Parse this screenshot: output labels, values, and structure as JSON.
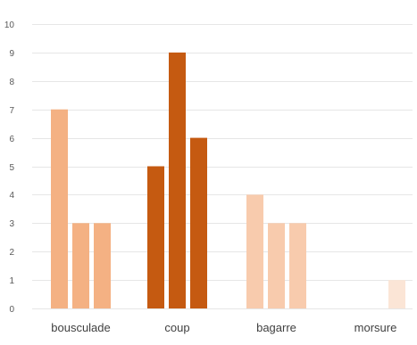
{
  "chart_data": {
    "type": "bar",
    "title": "",
    "xlabel": "",
    "ylabel": "",
    "ylim": [
      0,
      10
    ],
    "yticks": [
      0,
      1,
      2,
      3,
      4,
      5,
      6,
      7,
      8,
      9,
      10
    ],
    "grid": true,
    "legend": "none",
    "groups": [
      {
        "label": "bousculade",
        "color": "#f4b183",
        "values": [
          7,
          3,
          3
        ]
      },
      {
        "label": "coup",
        "color": "#c55a11",
        "values": [
          5,
          9,
          6
        ]
      },
      {
        "label": "bagarre",
        "color": "#f8cbad",
        "values": [
          4,
          3,
          3
        ]
      },
      {
        "label": "morsure",
        "color": "#fbe5d6",
        "values": [
          0,
          0,
          1
        ]
      }
    ]
  }
}
